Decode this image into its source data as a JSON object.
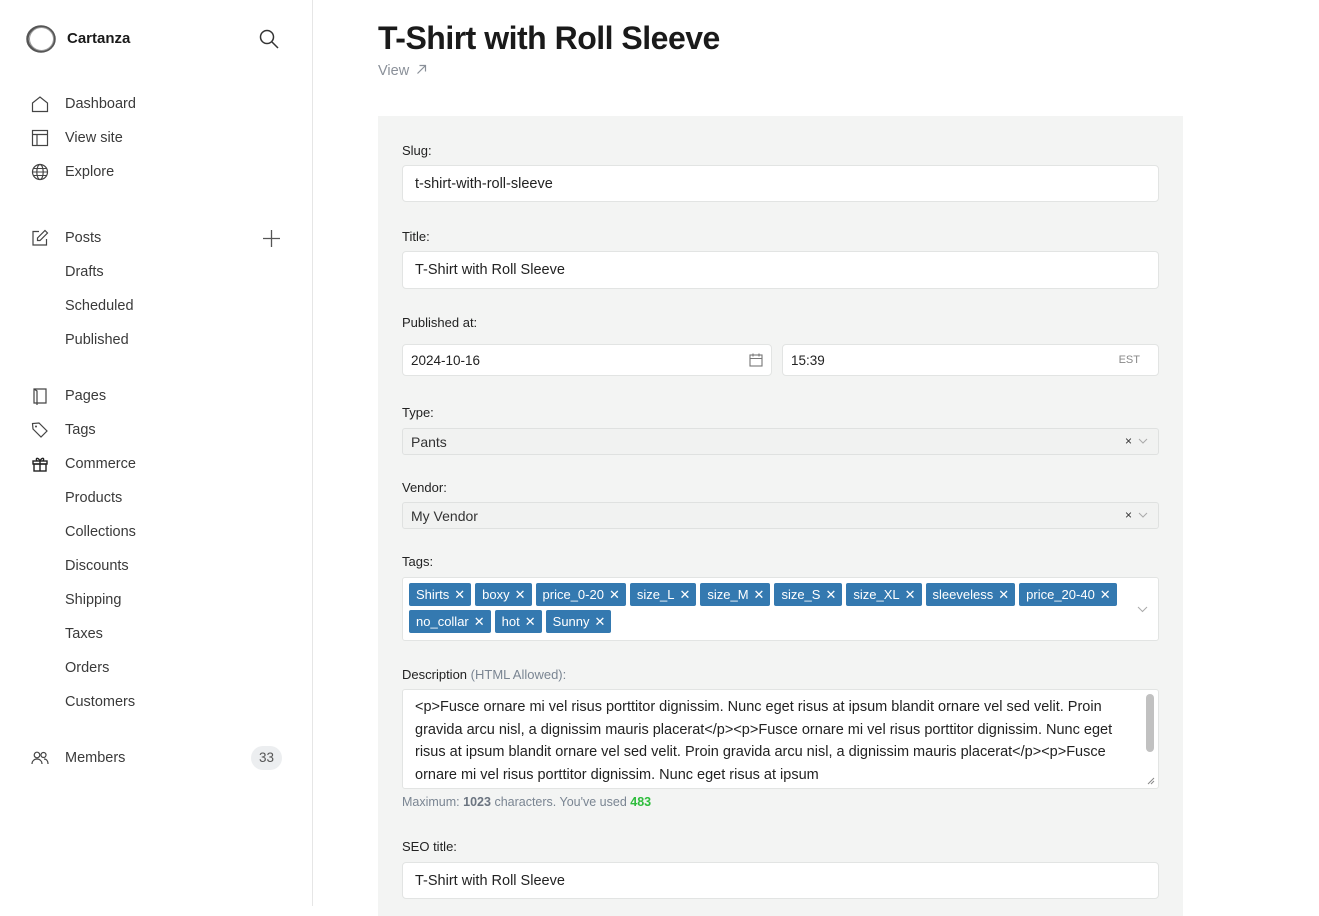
{
  "sidebar": {
    "brand": "Cartanza",
    "items": [
      {
        "label": "Dashboard",
        "icon": "home-icon"
      },
      {
        "label": "View site",
        "icon": "layout-icon"
      },
      {
        "label": "Explore",
        "icon": "globe-icon"
      },
      {
        "label": "Posts",
        "icon": "edit-icon"
      },
      {
        "label": "Drafts"
      },
      {
        "label": "Scheduled"
      },
      {
        "label": "Published"
      },
      {
        "label": "Pages",
        "icon": "book-icon"
      },
      {
        "label": "Tags",
        "icon": "tag-icon"
      },
      {
        "label": "Commerce",
        "icon": "gift-icon"
      },
      {
        "label": "Products"
      },
      {
        "label": "Collections"
      },
      {
        "label": "Discounts"
      },
      {
        "label": "Shipping"
      },
      {
        "label": "Taxes"
      },
      {
        "label": "Orders"
      },
      {
        "label": "Customers"
      },
      {
        "label": "Members",
        "icon": "users-icon",
        "badge": "33"
      }
    ]
  },
  "header": {
    "title": "T-Shirt with Roll Sleeve",
    "view_label": "View"
  },
  "form": {
    "slug": {
      "label": "Slug:",
      "value": "t-shirt-with-roll-sleeve"
    },
    "title": {
      "label": "Title:",
      "value": "T-Shirt with Roll Sleeve"
    },
    "published": {
      "label": "Published at:",
      "date": "2024-10-16",
      "time": "15:39",
      "tz": "EST"
    },
    "type": {
      "label": "Type:",
      "value": "Pants",
      "clear": "×"
    },
    "vendor": {
      "label": "Vendor:",
      "value": "My Vendor",
      "clear": "×"
    },
    "tags": {
      "label": "Tags:",
      "remove": "✕",
      "items": [
        "Shirts",
        "boxy",
        "price_0-20",
        "size_L",
        "size_M",
        "size_S",
        "size_XL",
        "sleeveless",
        "price_20-40",
        "no_collar",
        "hot",
        "Sunny"
      ]
    },
    "description": {
      "label": "Description",
      "hint": "(HTML Allowed):",
      "value": "<p>Fusce ornare mi vel risus porttitor dignissim. Nunc eget risus at ipsum blandit ornare vel sed velit. Proin gravida arcu nisl, a dignissim mauris placerat</p><p>Fusce ornare mi vel risus porttitor dignissim. Nunc eget risus at ipsum blandit ornare vel sed velit. Proin gravida arcu nisl, a dignissim mauris placerat</p><p>Fusce ornare mi vel risus porttitor dignissim. Nunc eget risus at ipsum",
      "max_prefix": "Maximum:",
      "max": "1023",
      "max_mid": "characters. You've used",
      "used": "483"
    },
    "seo_title": {
      "label": "SEO title:",
      "value": "T-Shirt with Roll Sleeve"
    }
  },
  "colors": {
    "tag": "#3479b0",
    "used_count": "#2ebd3c",
    "panel": "#f3f4f3"
  }
}
